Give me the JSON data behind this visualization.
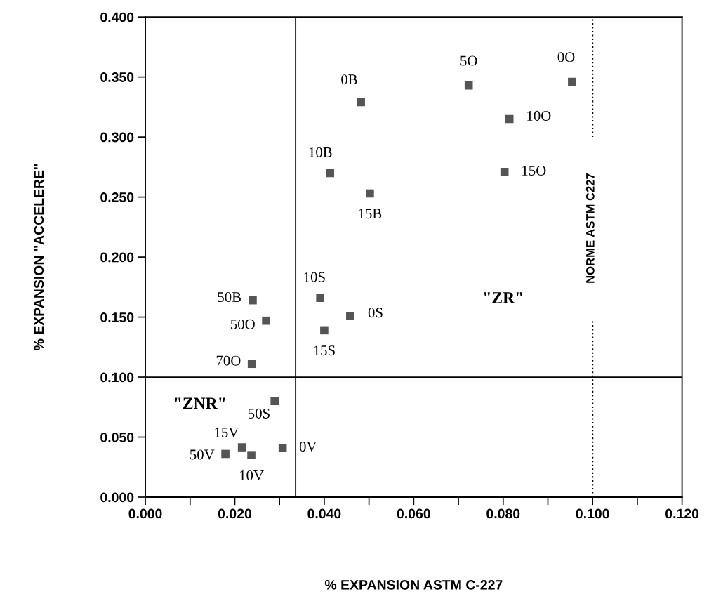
{
  "chart_data": {
    "type": "scatter",
    "xlabel": "% EXPANSION ASTM C-227",
    "ylabel": "% EXPANSION \"ACCELERE\"",
    "x": [
      0.0482,
      0.0723,
      0.0954,
      0.0814,
      0.0413,
      0.0502,
      0.0803,
      0.024,
      0.027,
      0.0238,
      0.0391,
      0.0458,
      0.04,
      0.0289,
      0.0216,
      0.0237,
      0.0179,
      0.0307
    ],
    "values": [
      0.329,
      0.343,
      0.346,
      0.315,
      0.27,
      0.253,
      0.271,
      0.164,
      0.147,
      0.111,
      0.166,
      0.151,
      0.139,
      0.08,
      0.0415,
      0.035,
      0.036,
      0.041
    ],
    "color": "#555555",
    "marker": "square",
    "grid": false,
    "xlim": [
      0,
      0.12
    ],
    "ylim": [
      0,
      0.4
    ],
    "xticks": [
      {
        "value": 0,
        "label": "0.000"
      },
      {
        "value": 0.01,
        "label": null
      },
      {
        "value": 0.02,
        "label": "0.020"
      },
      {
        "value": 0.03,
        "label": null
      },
      {
        "value": 0.04,
        "label": "0.040"
      },
      {
        "value": 0.05,
        "label": null
      },
      {
        "value": 0.06,
        "label": "0.060"
      },
      {
        "value": 0.07,
        "label": null
      },
      {
        "value": 0.08,
        "label": "0.080"
      },
      {
        "value": 0.09,
        "label": null
      },
      {
        "value": 0.1,
        "label": "0.100"
      },
      {
        "value": 0.11,
        "label": null
      },
      {
        "value": 0.12,
        "label": "0.120"
      }
    ],
    "yticks": [
      {
        "value": 0,
        "label": "0.000"
      },
      {
        "value": 0.05,
        "label": "0.050"
      },
      {
        "value": 0.1,
        "label": "0.100"
      },
      {
        "value": 0.15,
        "label": "0.150"
      },
      {
        "value": 0.2,
        "label": "0.200"
      },
      {
        "value": 0.25,
        "label": "0.250"
      },
      {
        "value": 0.3,
        "label": "0.300"
      },
      {
        "value": 0.35,
        "label": "0.350"
      },
      {
        "value": 0.4,
        "label": "0.400"
      }
    ],
    "ref_lines": [
      {
        "axis": "x",
        "value": 0.1,
        "label": "NORME ASTM C227",
        "line_style": "dotted"
      },
      {
        "axis": "x",
        "value": 0.0336,
        "line_style": "solid"
      },
      {
        "axis": "y",
        "value": 0.1,
        "line_style": "solid"
      }
    ],
    "annotations": [
      "\"ZR\"",
      "\"ZNR\"",
      {
        "text": "0B",
        "x": 0.0482,
        "y": 0.329
      },
      {
        "text": "5O",
        "x": 0.0723,
        "y": 0.343
      },
      {
        "text": "0O",
        "x": 0.0954,
        "y": 0.346
      },
      {
        "text": "10O",
        "x": 0.0814,
        "y": 0.315
      },
      {
        "text": "10B",
        "x": 0.0413,
        "y": 0.27
      },
      {
        "text": "15B",
        "x": 0.0502,
        "y": 0.253
      },
      {
        "text": "15O",
        "x": 0.0803,
        "y": 0.271
      },
      {
        "text": "50B",
        "x": 0.024,
        "y": 0.164
      },
      {
        "text": "50O",
        "x": 0.027,
        "y": 0.147
      },
      {
        "text": "70O",
        "x": 0.0238,
        "y": 0.111
      },
      {
        "text": "10S",
        "x": 0.0391,
        "y": 0.166
      },
      {
        "text": "0S",
        "x": 0.0458,
        "y": 0.151
      },
      {
        "text": "15S",
        "x": 0.04,
        "y": 0.139
      },
      {
        "text": "50S",
        "x": 0.0289,
        "y": 0.08
      },
      {
        "text": "15V",
        "x": 0.0216,
        "y": 0.0415
      },
      {
        "text": "10V",
        "x": 0.0237,
        "y": 0.035
      },
      {
        "text": "50V",
        "x": 0.0179,
        "y": 0.036
      },
      {
        "text": "0V",
        "x": 0.0307,
        "y": 0.041
      }
    ]
  }
}
